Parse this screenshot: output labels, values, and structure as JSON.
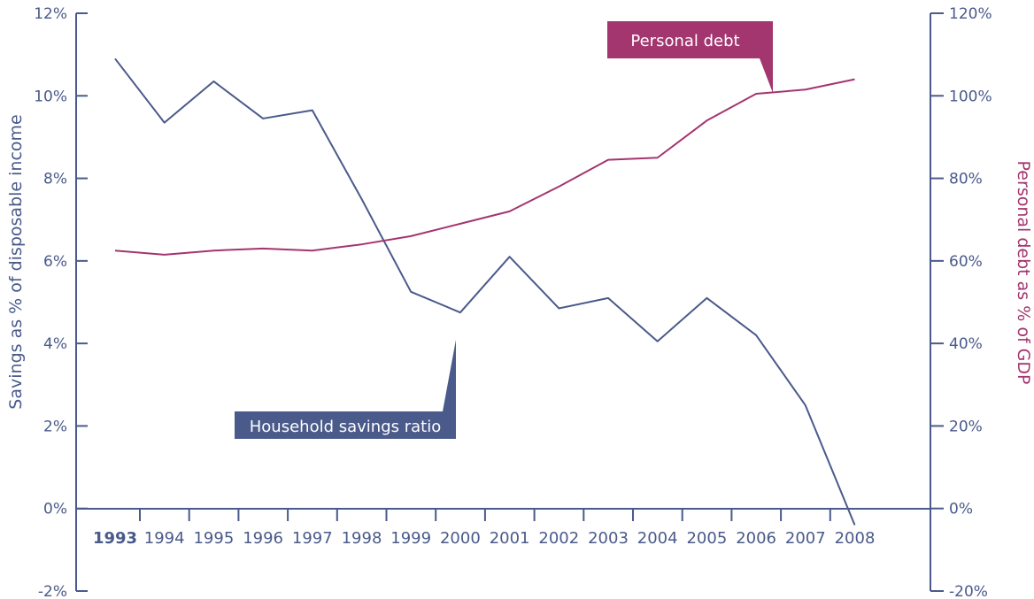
{
  "chart_data": {
    "type": "line",
    "x": [
      "1993",
      "1994",
      "1995",
      "1996",
      "1997",
      "1998",
      "1999",
      "2000",
      "2001",
      "2002",
      "2003",
      "2004",
      "2005",
      "2006",
      "2007",
      "2008"
    ],
    "series": [
      {
        "name": "Household savings ratio",
        "axis": "left",
        "color": "#4a5a8a",
        "values": [
          10.9,
          9.35,
          10.35,
          9.45,
          9.65,
          7.5,
          5.25,
          4.75,
          6.1,
          4.85,
          5.1,
          4.05,
          5.1,
          4.2,
          2.5,
          -0.4
        ]
      },
      {
        "name": "Personal debt",
        "axis": "right",
        "color": "#a3356f",
        "values": [
          62.5,
          61.5,
          62.5,
          63,
          62.5,
          64,
          66,
          69,
          72,
          78,
          84.5,
          85,
          94,
          100.5,
          101.5,
          104
        ]
      }
    ],
    "ylabel_left": "Savings as % of disposable income",
    "ylabel_right": "Personal debt as % of GDP",
    "ylim_left": [
      -2,
      12
    ],
    "ylim_right": [
      -20,
      120
    ],
    "yticks_left": [
      "12%",
      "10%",
      "8%",
      "6%",
      "4%",
      "2%",
      "0%",
      "-2%"
    ],
    "yticks_right": [
      "120%",
      "100%",
      "80%",
      "60%",
      "40%",
      "20%",
      "0%",
      "-20%"
    ],
    "grid": false,
    "callouts": {
      "debt_label": "Personal debt",
      "savings_label": "Household savings ratio"
    }
  }
}
